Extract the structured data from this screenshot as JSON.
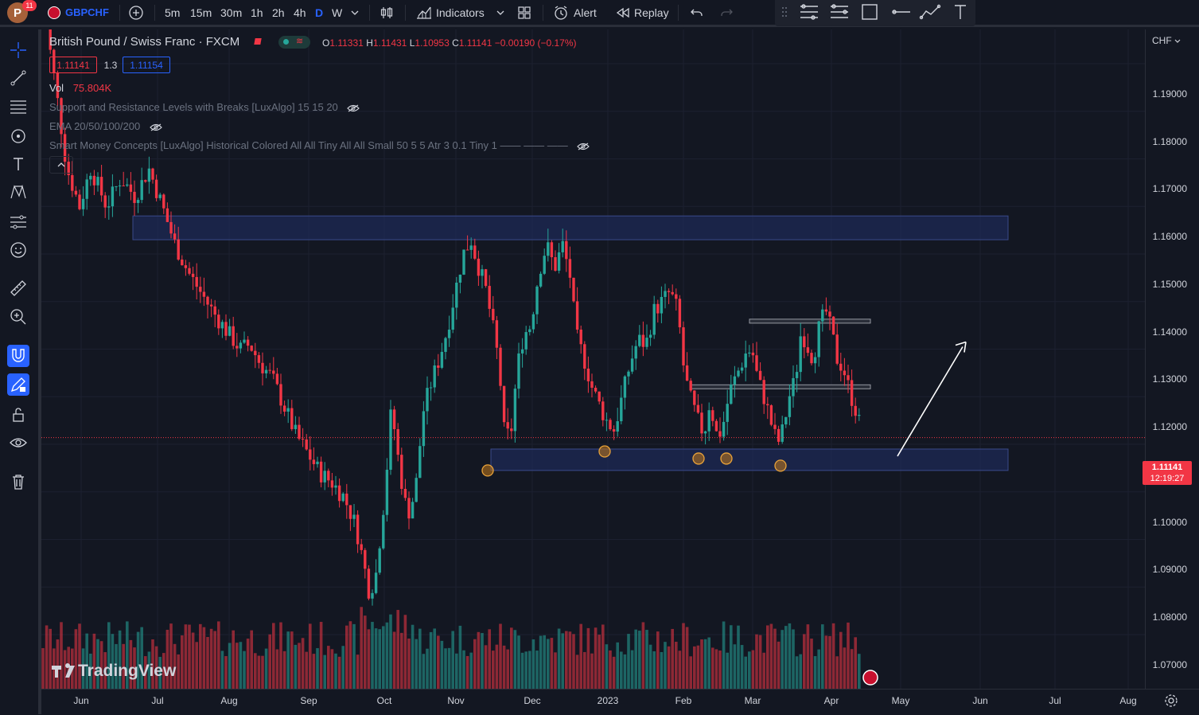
{
  "toolbar": {
    "avatar_letter": "P",
    "notifications": "11",
    "symbol": "GBPCHF",
    "intervals": [
      "5m",
      "15m",
      "30m",
      "1h",
      "2h",
      "4h",
      "D",
      "W"
    ],
    "active_interval": "D",
    "indicators_label": "Indicators",
    "alert_label": "Alert",
    "replay_label": "Replay"
  },
  "legend": {
    "title": "British Pound / Swiss Franc · FXCM",
    "ohlc": {
      "o_key": "O",
      "o": "1.11331",
      "h_key": "H",
      "h": "1.11431",
      "l_key": "L",
      "l": "1.10953",
      "c_key": "C",
      "c": "1.11141",
      "change": "−0.00190 (−0.17%)"
    },
    "sell_price": "1.11141",
    "spread": "1.3",
    "buy_price": "1.11154",
    "vol_label": "Vol",
    "vol_value": "75.804K",
    "indicators": [
      "Support and Resistance Levels with Breaks [LuxAlgo] 15 15 20",
      "EMA 20/50/100/200",
      "Smart Money Concepts [LuxAlgo] Historical Colored All All Tiny All All Small 50 5 5 Atr 3 0.1 Tiny 1 —— —— ——"
    ]
  },
  "price_axis": {
    "currency": "CHF",
    "ticks": [
      "1.19000",
      "1.18000",
      "1.17000",
      "1.16000",
      "1.15000",
      "1.14000",
      "1.13000",
      "1.12000",
      "1.10000",
      "1.09000",
      "1.08000",
      "1.07000"
    ],
    "last_price": "1.11141",
    "countdown": "12:19:27"
  },
  "time_axis": {
    "labels": [
      "Jun",
      "Jul",
      "Aug",
      "Sep",
      "Oct",
      "Nov",
      "Dec",
      "2023",
      "Feb",
      "Mar",
      "Apr",
      "May",
      "Jun",
      "Jul",
      "Aug"
    ]
  },
  "watermark": "TradingView",
  "colors": {
    "bull": "#26a69a",
    "bear": "#f23645",
    "accent": "#2962ff",
    "zone": "#1e2a55"
  },
  "chart_data": {
    "type": "candlestick",
    "title": "British Pound / Swiss Franc · FXCM",
    "interval": "D",
    "y_range": [
      1.065,
      1.198
    ],
    "x_range": [
      "Jun",
      "Aug"
    ],
    "last_close": 1.11141,
    "annotations": {
      "resistance_zone": [
        1.153,
        1.158
      ],
      "support_zone": [
        1.1045,
        1.109
      ],
      "gray_levels": [
        1.136,
        1.1223
      ],
      "marked_lows": 6,
      "arrow": "up from support"
    },
    "path": [
      [
        0,
        1.205
      ],
      [
        18,
        1.185
      ],
      [
        32,
        1.168
      ],
      [
        48,
        1.16
      ],
      [
        62,
        1.168
      ],
      [
        82,
        1.16
      ],
      [
        100,
        1.166
      ],
      [
        118,
        1.162
      ],
      [
        135,
        1.168
      ],
      [
        152,
        1.16
      ],
      [
        168,
        1.152
      ],
      [
        185,
        1.146
      ],
      [
        200,
        1.142
      ],
      [
        215,
        1.138
      ],
      [
        232,
        1.134
      ],
      [
        250,
        1.13
      ],
      [
        262,
        1.131
      ],
      [
        275,
        1.127
      ],
      [
        290,
        1.124
      ],
      [
        305,
        1.118
      ],
      [
        320,
        1.112
      ],
      [
        335,
        1.108
      ],
      [
        350,
        1.104
      ],
      [
        365,
        1.102
      ],
      [
        380,
        1.099
      ],
      [
        395,
        1.093
      ],
      [
        405,
        1.085
      ],
      [
        412,
        1.079
      ],
      [
        420,
        1.082
      ],
      [
        432,
        1.1
      ],
      [
        440,
        1.118
      ],
      [
        450,
        1.105
      ],
      [
        460,
        1.095
      ],
      [
        470,
        1.1
      ],
      [
        480,
        1.117
      ],
      [
        490,
        1.123
      ],
      [
        500,
        1.128
      ],
      [
        510,
        1.134
      ],
      [
        520,
        1.142
      ],
      [
        530,
        1.15
      ],
      [
        540,
        1.153
      ],
      [
        548,
        1.148
      ],
      [
        558,
        1.143
      ],
      [
        566,
        1.136
      ],
      [
        575,
        1.127
      ],
      [
        582,
        1.112
      ],
      [
        590,
        1.112
      ],
      [
        598,
        1.126
      ],
      [
        606,
        1.133
      ],
      [
        615,
        1.135
      ],
      [
        625,
        1.146
      ],
      [
        635,
        1.152
      ],
      [
        645,
        1.147
      ],
      [
        655,
        1.152
      ],
      [
        665,
        1.145
      ],
      [
        672,
        1.133
      ],
      [
        682,
        1.128
      ],
      [
        692,
        1.122
      ],
      [
        702,
        1.118
      ],
      [
        710,
        1.115
      ],
      [
        720,
        1.113
      ],
      [
        730,
        1.12
      ],
      [
        740,
        1.127
      ],
      [
        750,
        1.132
      ],
      [
        760,
        1.131
      ],
      [
        770,
        1.138
      ],
      [
        780,
        1.14
      ],
      [
        790,
        1.142
      ],
      [
        800,
        1.138
      ],
      [
        808,
        1.125
      ],
      [
        815,
        1.12
      ],
      [
        825,
        1.115
      ],
      [
        833,
        1.112
      ],
      [
        840,
        1.119
      ],
      [
        850,
        1.111
      ],
      [
        858,
        1.115
      ],
      [
        865,
        1.121
      ],
      [
        875,
        1.125
      ],
      [
        885,
        1.129
      ],
      [
        893,
        1.13
      ],
      [
        900,
        1.124
      ],
      [
        910,
        1.119
      ],
      [
        918,
        1.114
      ],
      [
        925,
        1.11
      ],
      [
        932,
        1.113
      ],
      [
        940,
        1.12
      ],
      [
        948,
        1.124
      ],
      [
        955,
        1.134
      ],
      [
        962,
        1.131
      ],
      [
        970,
        1.128
      ],
      [
        978,
        1.135
      ],
      [
        986,
        1.138
      ],
      [
        994,
        1.133
      ],
      [
        1000,
        1.128
      ],
      [
        1008,
        1.126
      ],
      [
        1016,
        1.121
      ],
      [
        1024,
        1.117
      ],
      [
        1032,
        1.112
      ]
    ]
  }
}
